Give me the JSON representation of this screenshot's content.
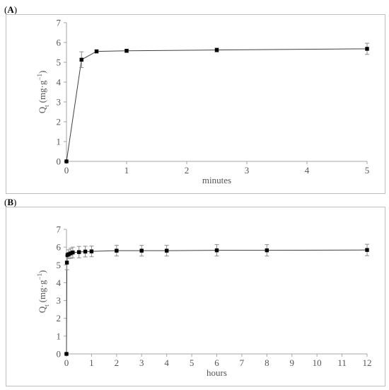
{
  "panels": [
    {
      "label_open": "(",
      "label_letter": "A",
      "label_close": ")"
    },
    {
      "label_open": "(",
      "label_letter": "B",
      "label_close": ")"
    }
  ],
  "chart_data": [
    {
      "type": "line",
      "title": "",
      "xlabel": "minutes",
      "ylabel_main": "Q",
      "ylabel_sub": "t",
      "ylabel_unit": "(mg·g",
      "ylabel_exp": "−1",
      "ylabel_close": ")",
      "xlim": [
        0,
        5
      ],
      "ylim": [
        0,
        7
      ],
      "xticks": [
        0,
        1,
        2,
        3,
        4,
        5
      ],
      "yticks": [
        0,
        1,
        2,
        3,
        4,
        5,
        6,
        7
      ],
      "grid": false,
      "series": [
        {
          "x": [
            0,
            0.25,
            0.5,
            1,
            2.5,
            5
          ],
          "y": [
            0,
            5.13,
            5.55,
            5.58,
            5.62,
            5.68
          ],
          "err": [
            0,
            0.4,
            0.08,
            0.08,
            0.1,
            0.28
          ]
        }
      ]
    },
    {
      "type": "line",
      "title": "",
      "xlabel": "hours",
      "ylabel_main": "Q",
      "ylabel_sub": "t",
      "ylabel_unit": "(mg·g",
      "ylabel_exp": "−1",
      "ylabel_close": ")",
      "xlim": [
        0,
        12
      ],
      "ylim": [
        0,
        7
      ],
      "xticks": [
        0,
        1,
        2,
        3,
        4,
        5,
        6,
        7,
        8,
        9,
        10,
        11,
        12
      ],
      "yticks": [
        0,
        1,
        2,
        3,
        4,
        5,
        6,
        7
      ],
      "grid": false,
      "series": [
        {
          "x": [
            0,
            0.0167,
            0.0417,
            0.0833,
            0.167,
            0.25,
            0.5,
            0.75,
            1,
            2,
            3,
            4,
            6,
            8,
            12
          ],
          "y": [
            0,
            5.13,
            5.55,
            5.6,
            5.65,
            5.7,
            5.72,
            5.75,
            5.76,
            5.8,
            5.8,
            5.8,
            5.82,
            5.82,
            5.84
          ],
          "err": [
            0,
            0.4,
            0.1,
            0.25,
            0.28,
            0.3,
            0.32,
            0.3,
            0.3,
            0.3,
            0.3,
            0.3,
            0.32,
            0.32,
            0.32
          ]
        }
      ]
    }
  ]
}
